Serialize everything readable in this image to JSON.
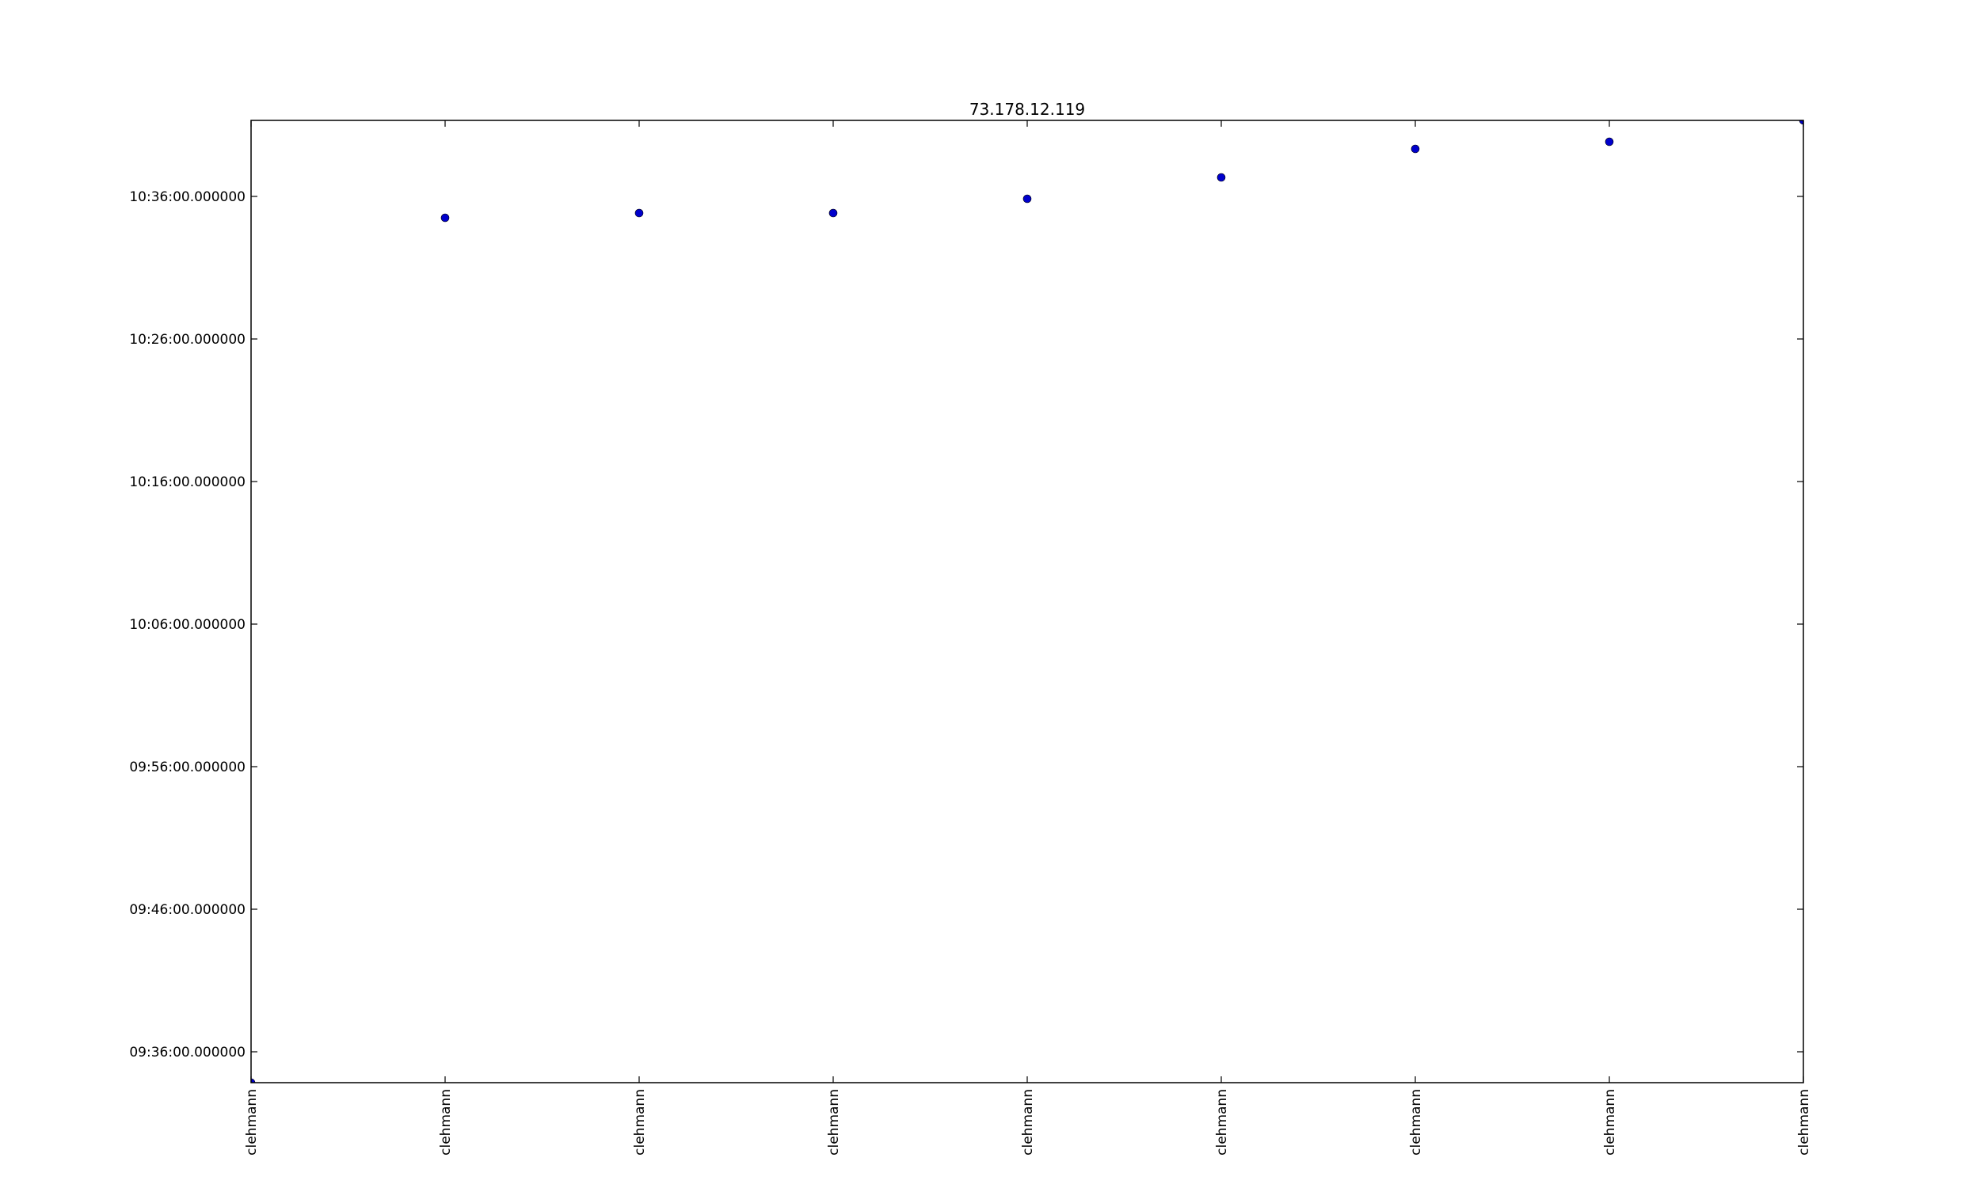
{
  "chart_data": {
    "type": "scatter",
    "title": "73.178.12.119",
    "xlabel": "",
    "ylabel": "",
    "categories": [
      "clehmann",
      "clehmann",
      "clehmann",
      "clehmann",
      "clehmann",
      "clehmann",
      "clehmann",
      "clehmann",
      "clehmann"
    ],
    "y_tick_labels": [
      "09:36:00.000000",
      "09:46:00.000000",
      "09:56:00.000000",
      "10:06:00.000000",
      "10:16:00.000000",
      "10:26:00.000000",
      "10:36:00.000000"
    ],
    "y_ticks": [
      "09:36:00",
      "09:46:00",
      "09:56:00",
      "10:06:00",
      "10:16:00",
      "10:26:00",
      "10:36:00"
    ],
    "ylim": [
      "09:33:50",
      "10:41:20"
    ],
    "values": [
      "09:33:50",
      "10:34:30",
      "10:34:50",
      "10:34:50",
      "10:35:50",
      "10:37:20",
      "10:39:20",
      "10:39:50",
      "10:41:20"
    ],
    "grid": false,
    "marker_color": "#0000cc",
    "axis_color": "#000000"
  }
}
